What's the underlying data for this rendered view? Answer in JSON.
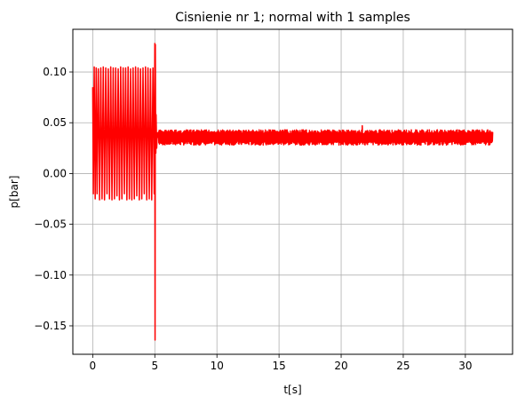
{
  "chart_data": {
    "type": "line",
    "title": "Cisnienie nr 1; normal with 1 samples",
    "xlabel": "t[s]",
    "ylabel": "p[bar]",
    "xlim": [
      -1.6,
      33.8
    ],
    "ylim": [
      -0.178,
      0.142
    ],
    "grid": true,
    "xticks": [
      0,
      5,
      10,
      15,
      20,
      25,
      30
    ],
    "yticks": [
      -0.15,
      -0.1,
      -0.05,
      0.0,
      0.05,
      0.1
    ],
    "xtick_labels": [
      "0",
      "5",
      "10",
      "15",
      "20",
      "25",
      "30"
    ],
    "ytick_labels": [
      "−0.15",
      "−0.10",
      "−0.05",
      "0.00",
      "0.05",
      "0.10"
    ],
    "series": [
      {
        "color": "#ff0000",
        "x": [
          0.0,
          0.05,
          0.12,
          0.2,
          0.28,
          0.35,
          0.45,
          0.55,
          0.65,
          0.75,
          0.85,
          0.95,
          1.05,
          1.15,
          1.25,
          1.35,
          1.45,
          1.55,
          1.65,
          1.75,
          1.85,
          1.95,
          2.05,
          2.15,
          2.25,
          2.35,
          2.45,
          2.55,
          2.65,
          2.75,
          2.85,
          2.95,
          3.05,
          3.15,
          3.25,
          3.35,
          3.45,
          3.55,
          3.65,
          3.75,
          3.85,
          3.95,
          4.05,
          4.15,
          4.25,
          4.35,
          4.45,
          4.55,
          4.65,
          4.75,
          4.85,
          4.95,
          5.0,
          5.02,
          5.04,
          5.06,
          5.08,
          5.1,
          5.15,
          5.2,
          5.3
        ],
        "y": [
          0.085,
          -0.02,
          0.105,
          -0.025,
          0.104,
          -0.02,
          0.103,
          -0.026,
          0.104,
          -0.025,
          0.105,
          -0.026,
          0.104,
          -0.02,
          0.103,
          -0.025,
          0.105,
          -0.026,
          0.104,
          -0.025,
          0.104,
          -0.022,
          0.103,
          -0.026,
          0.105,
          -0.025,
          0.104,
          -0.02,
          0.104,
          -0.026,
          0.105,
          -0.025,
          0.103,
          -0.026,
          0.104,
          -0.025,
          0.105,
          -0.022,
          0.104,
          -0.026,
          0.103,
          -0.025,
          0.104,
          -0.02,
          0.105,
          -0.026,
          0.104,
          -0.025,
          0.103,
          -0.026,
          0.104,
          -0.02,
          0.128,
          -0.164,
          0.127,
          0.06,
          0.02,
          0.058,
          0.025,
          0.04,
          0.035
        ]
      }
    ],
    "steady_band": {
      "x_start": 5.3,
      "x_end": 32.2,
      "low": 0.028,
      "high": 0.043,
      "peak_x": 21.7,
      "peak_y": 0.047
    }
  }
}
